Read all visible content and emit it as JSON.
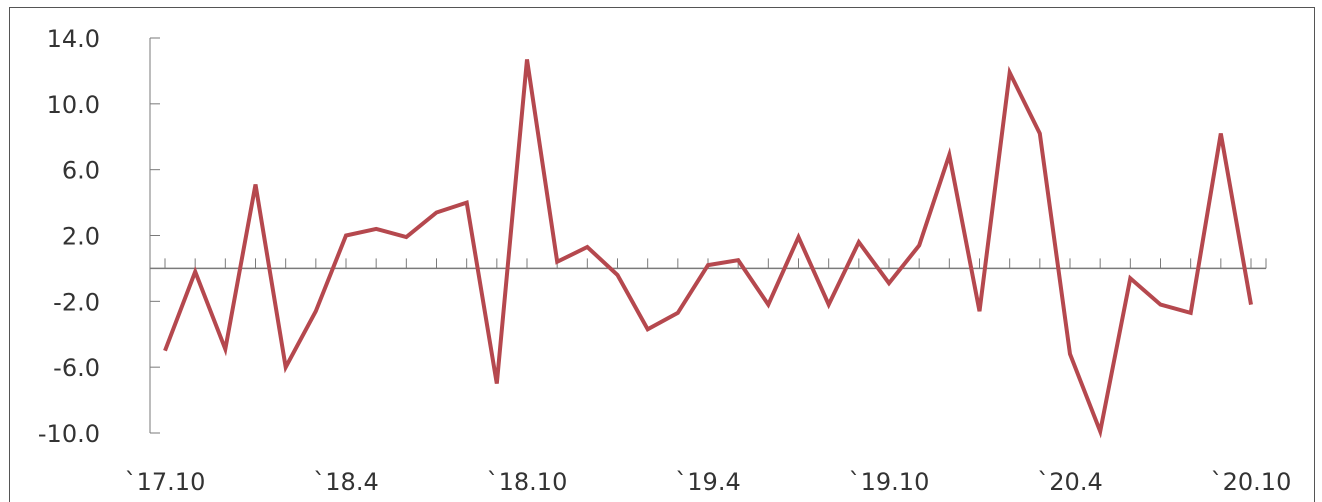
{
  "chart_data": {
    "type": "line",
    "title": "",
    "xlabel": "",
    "ylabel": "",
    "ylim": [
      -10,
      14
    ],
    "yticks": [
      14,
      10,
      6,
      2,
      -2,
      -6,
      -10
    ],
    "ytick_labels": [
      "14.0",
      "10.0",
      "6.0",
      "2.0",
      "-2.0",
      "-6.0",
      "-10.0"
    ],
    "x": [
      "17.10",
      "17.11",
      "17.12",
      "18.1",
      "18.2",
      "18.3",
      "18.4",
      "18.5",
      "18.6",
      "18.7",
      "18.8",
      "18.9",
      "18.10",
      "18.11",
      "18.12",
      "19.1",
      "19.2",
      "19.3",
      "19.4",
      "19.5",
      "19.6",
      "19.7",
      "19.8",
      "19.9",
      "19.10",
      "19.11",
      "19.12",
      "20.1",
      "20.2",
      "20.3",
      "20.4",
      "20.5",
      "20.6",
      "20.7",
      "20.8",
      "20.9",
      "20.10"
    ],
    "xtick_labels": [
      {
        "index": 0,
        "label": "`17.10"
      },
      {
        "index": 6,
        "label": "`18.4"
      },
      {
        "index": 12,
        "label": "`18.10"
      },
      {
        "index": 18,
        "label": "`19.4"
      },
      {
        "index": 24,
        "label": "`19.10"
      },
      {
        "index": 30,
        "label": "`20.4"
      },
      {
        "index": 36,
        "label": "`20.10"
      }
    ],
    "grid": false,
    "series": [
      {
        "color": "#b5484e",
        "values": [
          -5.0,
          -0.2,
          -4.9,
          5.1,
          -6.0,
          -2.6,
          2.0,
          2.4,
          1.9,
          3.4,
          4.0,
          -7.0,
          12.7,
          0.4,
          1.3,
          -0.4,
          -3.7,
          -2.7,
          0.2,
          0.5,
          -2.2,
          1.9,
          -2.2,
          1.6,
          -0.9,
          1.4,
          6.9,
          -2.6,
          11.9,
          8.2,
          -5.2,
          -9.9,
          -0.6,
          -2.2,
          -2.7,
          8.2,
          -2.2
        ]
      }
    ],
    "axis_color": "#7a7a7a"
  }
}
